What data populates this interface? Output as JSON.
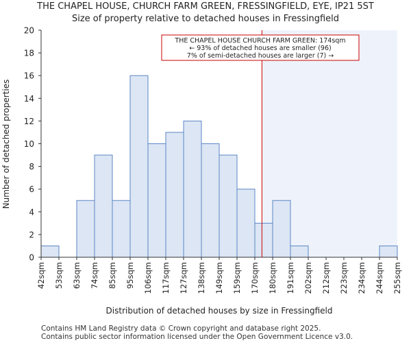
{
  "chart_data": {
    "type": "bar",
    "title": "THE CHAPEL HOUSE, CHURCH FARM GREEN, FRESSINGFIELD, EYE, IP21 5ST",
    "subtitle": "Size of property relative to detached houses in Fressingfield",
    "xlabel": "Distribution of detached houses by size in Fressingfield",
    "ylabel": "Number of detached properties",
    "tick_labels": [
      "42sqm",
      "53sqm",
      "63sqm",
      "74sqm",
      "85sqm",
      "95sqm",
      "106sqm",
      "117sqm",
      "127sqm",
      "138sqm",
      "149sqm",
      "159sqm",
      "170sqm",
      "180sqm",
      "191sqm",
      "202sqm",
      "212sqm",
      "223sqm",
      "234sqm",
      "244sqm",
      "255sqm"
    ],
    "values": [
      1,
      0,
      5,
      9,
      5,
      16,
      10,
      11,
      12,
      10,
      9,
      6,
      3,
      5,
      1,
      0,
      0,
      0,
      0,
      1
    ],
    "ylim": [
      0,
      20
    ],
    "yticks": [
      0,
      2,
      4,
      6,
      8,
      10,
      12,
      14,
      16,
      18,
      20
    ],
    "marker_value": 174,
    "annotation": {
      "line1": "THE CHAPEL HOUSE CHURCH FARM GREEN: 174sqm",
      "line2": "← 93% of detached houses are smaller (96)",
      "line3": "7% of semi-detached houses are larger (7) →"
    },
    "colors": {
      "bar_fill": "#dce6f4",
      "bar_stroke": "#5b87c5",
      "marker": "#cc0000",
      "highlight_region": "#eef3fb"
    }
  },
  "footer": {
    "line1": "Contains HM Land Registry data © Crown copyright and database right 2025.",
    "line2": "Contains public sector information licensed under the Open Government Licence v3.0."
  }
}
